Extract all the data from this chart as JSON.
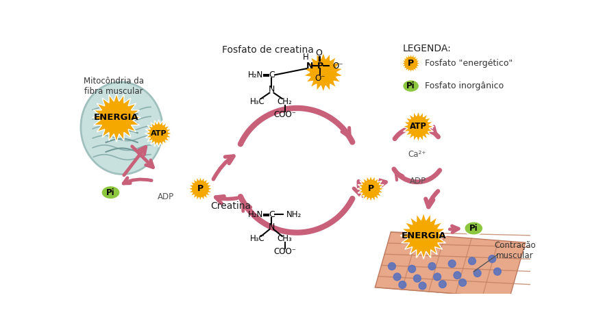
{
  "bg_color": "#ffffff",
  "arrow_color": "#c8607a",
  "burst_color": "#f5a800",
  "pi_color": "#8dc63f",
  "label_fosfato_creatina": "Fosfato de creatina",
  "label_creatina": "Creatina",
  "label_mitocondria": "Mitocôndria da\nfibra muscular",
  "label_contracao": "Contração\nmuscular",
  "label_atp1": "ATP",
  "label_adp1": "ADP",
  "label_pi1": "Pi",
  "label_energia1": "ENERGIA",
  "label_p1": "P",
  "label_atp2": "ATP",
  "label_adp2": "ADP",
  "label_pi2": "Pi",
  "label_energia2": "ENERGIA",
  "label_p2": "P",
  "label_ca": "Ca²⁺",
  "legend_title": "LEGENDA:",
  "legend_p": "Fosfato \"energético\"",
  "legend_pi": "Fosfato inorgânico"
}
